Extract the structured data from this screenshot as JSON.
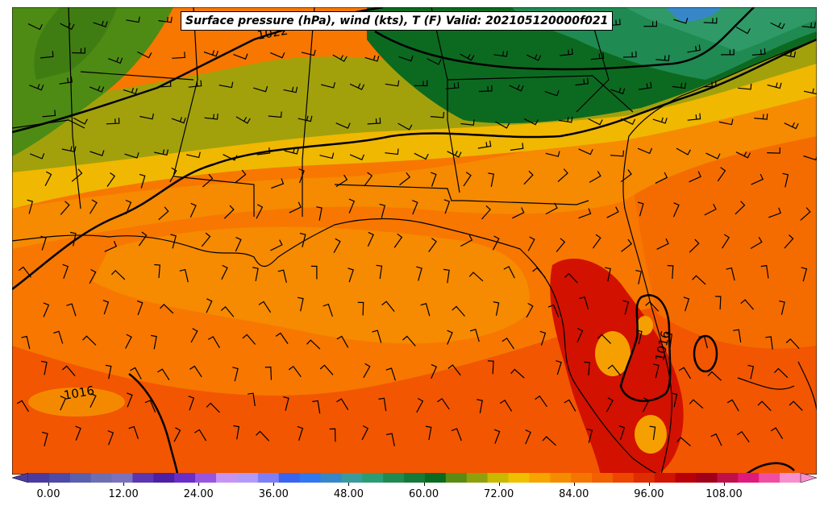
{
  "title": "Surface pressure (hPa), wind (kts), T (F) Valid: 202105120000f021",
  "isobars": [
    "1022",
    "1016",
    "1016"
  ],
  "colorbar": {
    "ticks": [
      "0.00",
      "12.00",
      "24.00",
      "36.00",
      "48.00",
      "60.00",
      "72.00",
      "84.00",
      "96.00",
      "108.00"
    ],
    "colors": [
      "#4b3b9e",
      "#4f4aa5",
      "#5a5fae",
      "#6e6fb3",
      "#7b72be",
      "#5b36b0",
      "#4c1fa3",
      "#6a2ec8",
      "#9a55e0",
      "#c794f2",
      "#b49af7",
      "#7f7ff5",
      "#3a64f0",
      "#2f78ef",
      "#3787c8",
      "#3a9a9e",
      "#2c9c74",
      "#1f8a52",
      "#15793a",
      "#0a6a1f",
      "#5a8b13",
      "#8fa00d",
      "#c8b800",
      "#f0c000",
      "#f6a400",
      "#f58c00",
      "#f47600",
      "#f26000",
      "#ec4600",
      "#df2c00",
      "#cf1400",
      "#b80008",
      "#a00018",
      "#c0104a",
      "#e01a7c",
      "#f04ea2",
      "#f78fcc"
    ]
  },
  "colors": {
    "gulf": "#f77700",
    "land_warm": "#f68a00",
    "south_red": "#f25600",
    "peninsula_hot": "#d21100",
    "yellow_band": "#f0b800",
    "olive": "#a2a10c",
    "green": "#4e8b14",
    "dark_green": "#0c6a20",
    "teal": "#2f9a67"
  }
}
